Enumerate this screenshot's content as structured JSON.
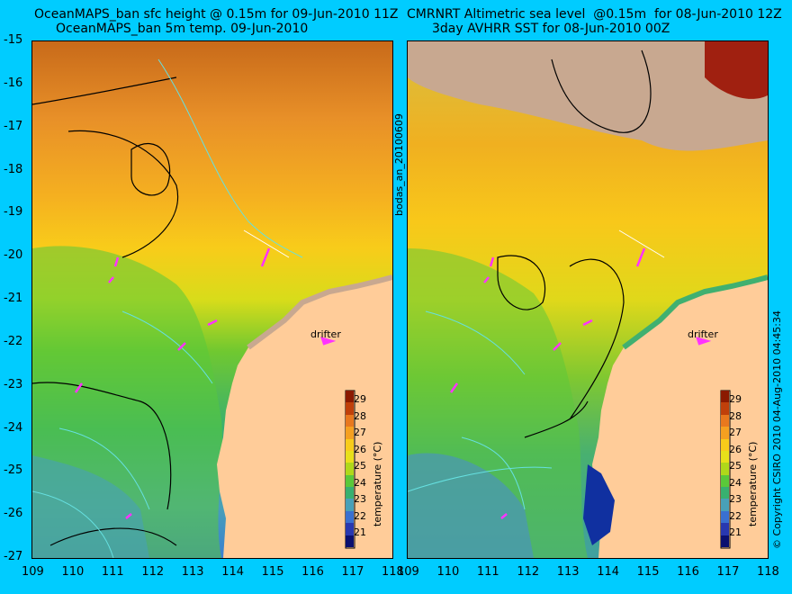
{
  "titles": {
    "left_line1": "OceanMAPS_ban sfc height @ 0.15m for 09-Jun-2010 11Z",
    "left_line2": "OceanMAPS_ban 5m temp. 09-Jun-2010",
    "right_line1": "CMRNRT Altimetric sea level  @0.15m  for 08-Jun-2010 12Z",
    "right_line2": "3day AVHRR SST for 08-Jun-2010 00Z"
  },
  "center_vertical_label": "bodas_an_20100609",
  "right_vertical_label": "© Copyright CSIRO 2010   04-Aug-2010 04:45:34",
  "lat_ticks": [
    "-15",
    "-16",
    "-17",
    "-18",
    "-19",
    "-20",
    "-21",
    "-22",
    "-23",
    "-24",
    "-25",
    "-26",
    "-27"
  ],
  "lon_ticks": [
    "109",
    "110",
    "111",
    "112",
    "113",
    "114",
    "115",
    "116",
    "117",
    "118"
  ],
  "colorbar": {
    "title": "temperature (°C)",
    "ticks": [
      "29",
      "28",
      "27",
      "26",
      "25",
      "24",
      "23",
      "22",
      "21"
    ],
    "colors": [
      "#8b1a00",
      "#c0400a",
      "#e8781e",
      "#f5a020",
      "#f8cc1a",
      "#e8e01a",
      "#b0d81a",
      "#5ac83a",
      "#38b070",
      "#48a0b8",
      "#3a70d0",
      "#2838b0",
      "#0a1070"
    ]
  },
  "drifter_label": "drifter",
  "colors": {
    "background": "#00ccff",
    "land": "#ffcc99",
    "cloud": "#c8a890",
    "arrow": "#ff33ff",
    "contour": "#66e0e0"
  }
}
